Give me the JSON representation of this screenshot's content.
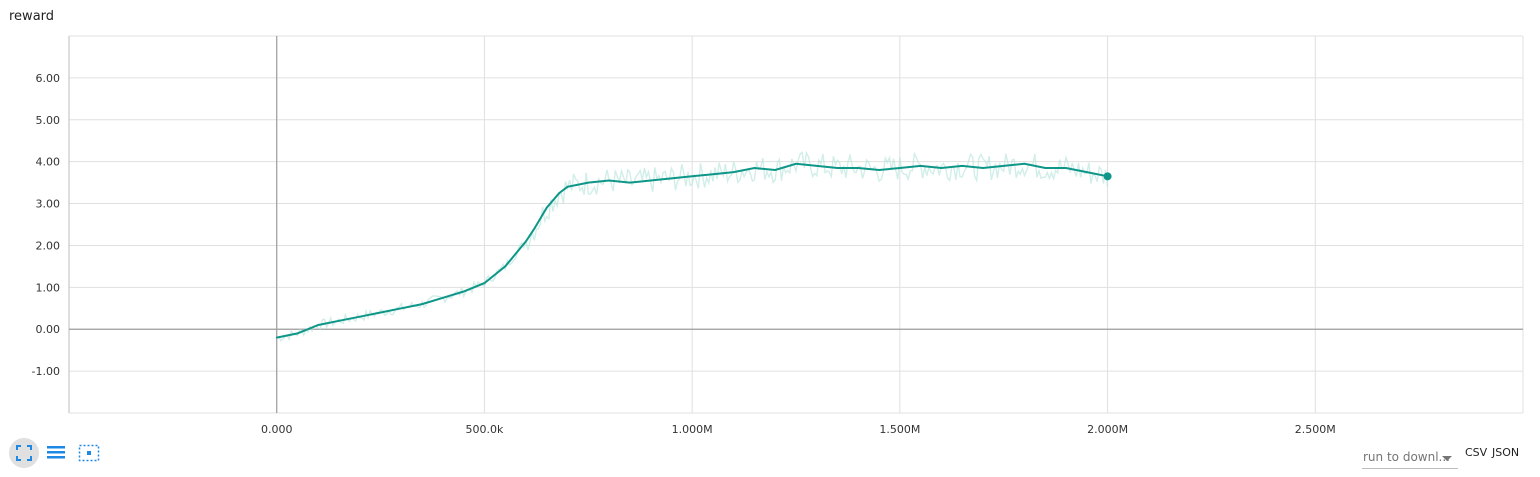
{
  "chart_data": {
    "type": "line",
    "title": "reward",
    "xlabel": "",
    "ylabel": "",
    "xlim": [
      -500000,
      3000000
    ],
    "ylim": [
      -2.0,
      7.0
    ],
    "x_tick_labels": [
      "0.000",
      "500.0k",
      "1.000M",
      "1.500M",
      "2.000M",
      "2.500M"
    ],
    "x_ticks": [
      0,
      500000,
      1000000,
      1500000,
      2000000,
      2500000
    ],
    "y_tick_labels": [
      "-1.00",
      "0.00",
      "1.00",
      "2.00",
      "3.00",
      "4.00",
      "5.00",
      "6.00"
    ],
    "y_ticks": [
      -1,
      0,
      1,
      2,
      3,
      4,
      5,
      6
    ],
    "grid": true,
    "series": [
      {
        "color": "#0e9688",
        "raw_color": "#b2e2da",
        "x": [
          0,
          50000,
          100000,
          150000,
          200000,
          250000,
          300000,
          350000,
          400000,
          450000,
          500000,
          550000,
          600000,
          620000,
          650000,
          680000,
          700000,
          750000,
          800000,
          850000,
          900000,
          950000,
          1000000,
          1050000,
          1100000,
          1150000,
          1200000,
          1250000,
          1300000,
          1350000,
          1400000,
          1450000,
          1500000,
          1550000,
          1600000,
          1650000,
          1700000,
          1750000,
          1800000,
          1850000,
          1900000,
          1950000,
          2000000
        ],
        "values": [
          -0.2,
          -0.1,
          0.1,
          0.2,
          0.3,
          0.4,
          0.5,
          0.6,
          0.75,
          0.9,
          1.1,
          1.5,
          2.1,
          2.4,
          2.9,
          3.25,
          3.4,
          3.5,
          3.55,
          3.5,
          3.55,
          3.6,
          3.65,
          3.7,
          3.75,
          3.85,
          3.8,
          3.95,
          3.9,
          3.85,
          3.85,
          3.8,
          3.85,
          3.9,
          3.85,
          3.9,
          3.85,
          3.9,
          3.95,
          3.85,
          3.85,
          3.75,
          3.65
        ]
      }
    ]
  },
  "controls": {
    "run_select": "run to downl...",
    "csv_label": "CSV",
    "json_label": "JSON",
    "icons": [
      "fit-domain-icon",
      "toggle-log-icon",
      "select-region-icon"
    ]
  }
}
